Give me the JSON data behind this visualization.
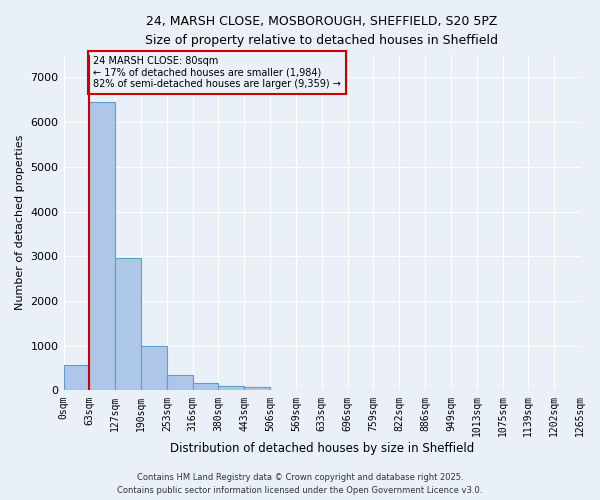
{
  "title_line1": "24, MARSH CLOSE, MOSBOROUGH, SHEFFIELD, S20 5PZ",
  "title_line2": "Size of property relative to detached houses in Sheffield",
  "xlabel": "Distribution of detached houses by size in Sheffield",
  "ylabel": "Number of detached properties",
  "bar_values": [
    580,
    6450,
    2970,
    990,
    350,
    165,
    95,
    75,
    0,
    0,
    0,
    0,
    0,
    0,
    0,
    0,
    0,
    0,
    0,
    0
  ],
  "bar_labels": [
    "0sqm",
    "63sqm",
    "127sqm",
    "190sqm",
    "253sqm",
    "316sqm",
    "380sqm",
    "443sqm",
    "506sqm",
    "569sqm",
    "633sqm",
    "696sqm",
    "759sqm",
    "822sqm",
    "886sqm",
    "949sqm",
    "1013sqm",
    "1075sqm",
    "1139sqm",
    "1202sqm",
    "1265sqm"
  ],
  "ylim": [
    0,
    7500
  ],
  "yticks": [
    0,
    1000,
    2000,
    3000,
    4000,
    5000,
    6000,
    7000
  ],
  "red_line_x": 1.0,
  "annotation_title": "24 MARSH CLOSE: 80sqm",
  "annotation_line2": "← 17% of detached houses are smaller (1,984)",
  "annotation_line3": "82% of semi-detached houses are larger (9,359) →",
  "bar_color": "#aec6e8",
  "bar_edge_color": "#5a9fd4",
  "red_line_color": "#cc0000",
  "annotation_box_color": "#cc0000",
  "bg_color": "#eaf0f8",
  "grid_color": "#ffffff",
  "footer_line1": "Contains HM Land Registry data © Crown copyright and database right 2025.",
  "footer_line2": "Contains public sector information licensed under the Open Government Licence v3.0."
}
